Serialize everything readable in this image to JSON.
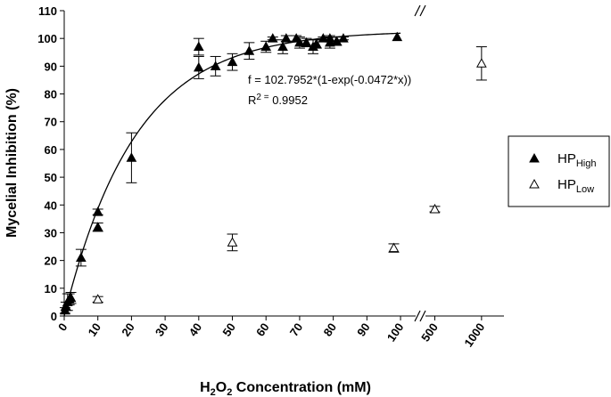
{
  "chart_data": {
    "type": "scatter",
    "y_title": "Mycelial Inhibition (%)",
    "x_title_parts": [
      "H",
      "2",
      "O",
      "2",
      " Concentration (mM)"
    ],
    "annotation_fit": "f = 102.7952*(1-exp(-0.0472*x))",
    "annotation_r2": [
      "R",
      "2 =",
      " 0.9952"
    ],
    "fit_a": 102.7952,
    "fit_b": 0.0472,
    "fit_xrange": [
      0,
      100
    ],
    "xlim": [
      0,
      104.5
    ],
    "xticks": [
      0,
      10,
      20,
      30,
      40,
      50,
      60,
      70,
      80,
      90,
      100
    ],
    "x2lim": [
      400,
      1240
    ],
    "x2ticks": [
      500,
      1000
    ],
    "ylim": [
      0,
      110
    ],
    "yticks": [
      0,
      10,
      20,
      30,
      40,
      50,
      60,
      70,
      80,
      90,
      100,
      110
    ],
    "series": [
      {
        "name": "HP",
        "name_sub": "High",
        "color": "#000000",
        "filled": true,
        "x": [
          0.25,
          0.5,
          1,
          1.5,
          2,
          5,
          10,
          10,
          20,
          40,
          40,
          45,
          50,
          55,
          60,
          62,
          65,
          66,
          69,
          70,
          72,
          74,
          75,
          77,
          79,
          79,
          81,
          83,
          99
        ],
        "values": [
          2,
          3.5,
          5,
          6,
          6.5,
          21,
          37.5,
          32,
          57,
          97,
          89.5,
          90,
          91.5,
          95.5,
          97,
          100,
          97,
          100,
          100,
          98.5,
          98.5,
          97,
          98,
          100,
          100,
          98.5,
          99,
          100,
          100.5
        ],
        "errors": [
          1,
          1.5,
          3,
          2,
          2,
          3,
          1,
          1.5,
          9,
          3,
          4,
          3.5,
          3,
          3,
          2,
          0.5,
          2.5,
          1,
          1,
          2,
          1.5,
          2.5,
          1.5,
          0.5,
          1,
          2,
          1.5,
          0.5,
          0
        ]
      },
      {
        "name": "HP",
        "name_sub": "Low",
        "color": "#000000",
        "filled": false,
        "x": [
          10,
          50,
          98,
          500,
          1000
        ],
        "values": [
          6,
          26.5,
          24.5,
          38.5,
          91
        ],
        "errors": [
          1,
          3,
          1.5,
          1,
          6
        ]
      }
    ]
  }
}
